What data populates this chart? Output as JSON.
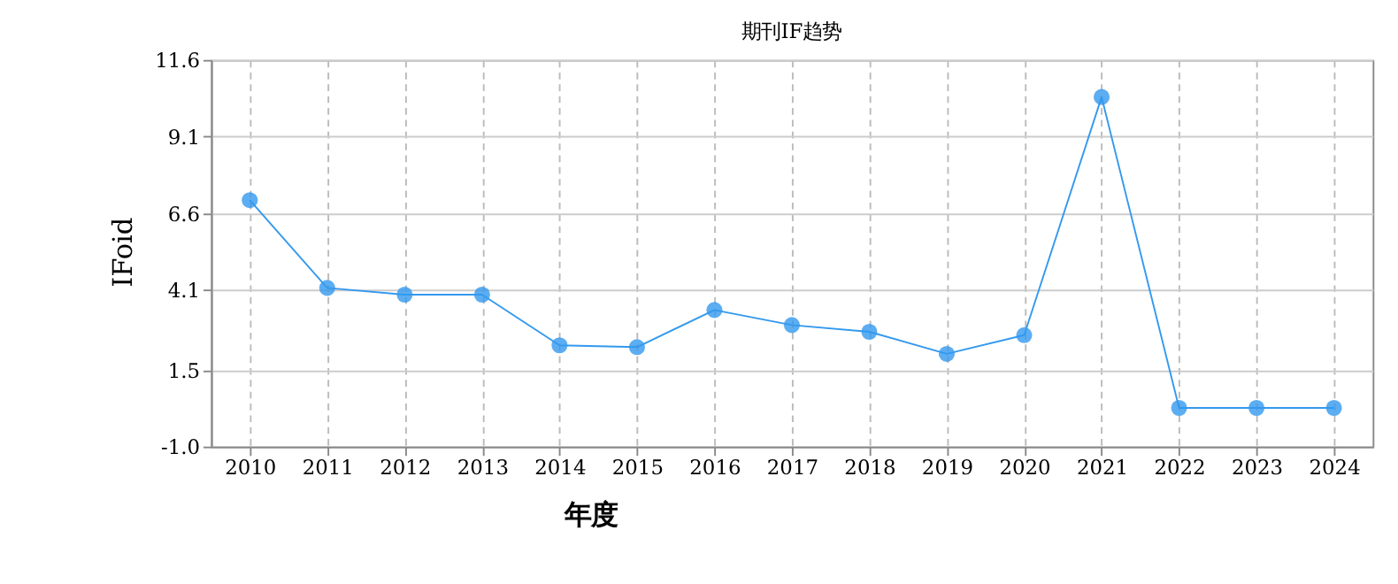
{
  "chart_data": {
    "type": "line",
    "title": "期刊IF趋势",
    "xlabel": "年度",
    "ylabel": "IFoid",
    "categories": [
      "2010",
      "2011",
      "2012",
      "2013",
      "2014",
      "2015",
      "2016",
      "2017",
      "2018",
      "2019",
      "2020",
      "2021",
      "2022",
      "2023",
      "2024"
    ],
    "series": [
      {
        "color": "#3399ee",
        "values": [
          7.03,
          4.17,
          3.95,
          3.95,
          2.3,
          2.24,
          3.45,
          2.96,
          2.74,
          2.02,
          2.63,
          10.39,
          0.26,
          0.26,
          0.26
        ]
      }
    ],
    "ylim": [
      -1.0,
      11.6
    ],
    "yticks": [
      {
        "value": -1.0,
        "label": "-1.0"
      },
      1.5,
      4.1,
      6.6,
      9.1,
      11.6
    ],
    "grid": true,
    "marker": "circle",
    "line_style": "solid",
    "legend": false
  }
}
